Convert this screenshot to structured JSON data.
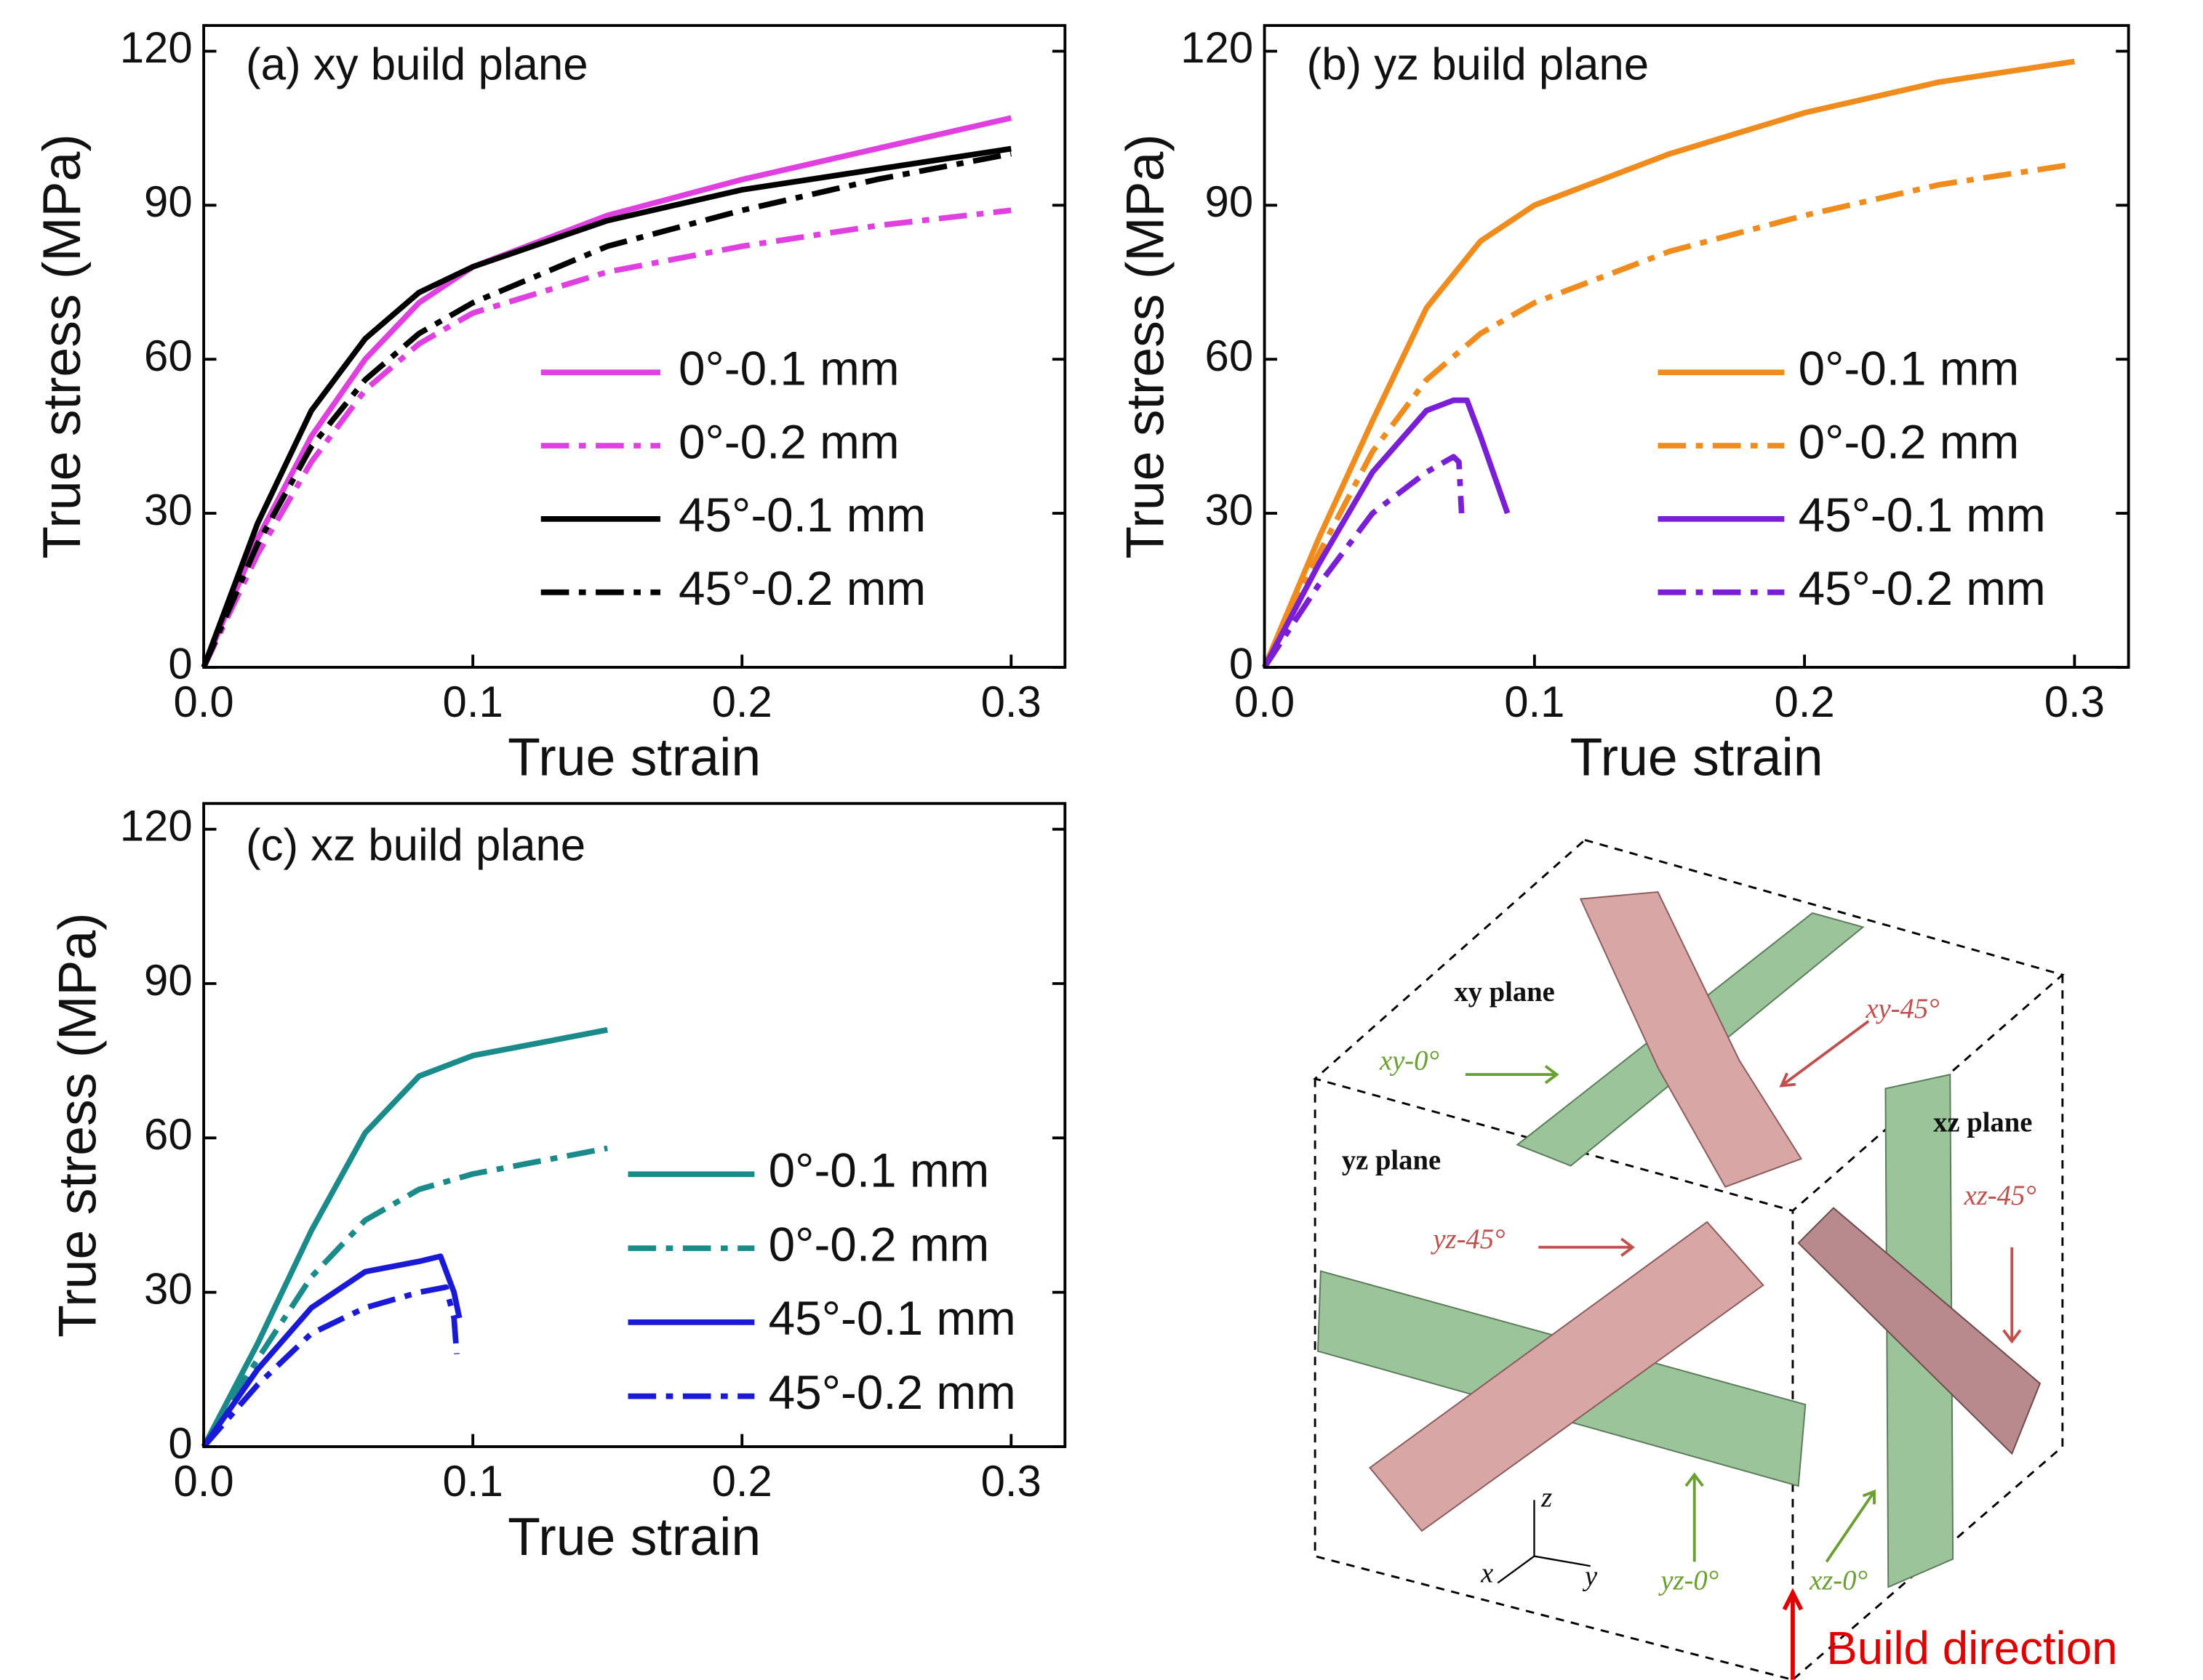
{
  "chart_data": [
    {
      "type": "line",
      "title": "(a) xy build plane",
      "xlabel": "True strain",
      "ylabel": "True stress (MPa)",
      "xlim": [
        0,
        0.32
      ],
      "ylim": [
        0,
        125
      ],
      "xticks": [
        {
          "value": 0,
          "label": "0.0"
        },
        0.1,
        0.2,
        0.3
      ],
      "yticks": [
        0,
        30,
        60,
        90,
        120
      ],
      "series": [
        {
          "name": "0°-0.1 mm",
          "color": "#e040e0",
          "linestyle": "solid",
          "x": [
            0,
            0.02,
            0.04,
            0.06,
            0.08,
            0.1,
            0.15,
            0.2,
            0.25,
            0.3
          ],
          "values": [
            0,
            25,
            45,
            60,
            71,
            78,
            88,
            95,
            101,
            107
          ]
        },
        {
          "name": "0°-0.2 mm",
          "color": "#e040e0",
          "linestyle": "dashdot",
          "x": [
            0,
            0.02,
            0.04,
            0.06,
            0.08,
            0.1,
            0.15,
            0.2,
            0.25,
            0.3
          ],
          "values": [
            0,
            22,
            40,
            54,
            63,
            69,
            77,
            82,
            86,
            89
          ]
        },
        {
          "name": "45°-0.1 mm",
          "color": "#000000",
          "linestyle": "solid",
          "x": [
            0,
            0.02,
            0.04,
            0.06,
            0.08,
            0.1,
            0.15,
            0.2,
            0.25,
            0.3
          ],
          "values": [
            0,
            28,
            50,
            64,
            73,
            78,
            87,
            93,
            97,
            101
          ]
        },
        {
          "name": "45°-0.2 mm",
          "color": "#000000",
          "linestyle": "dashdot",
          "x": [
            0,
            0.02,
            0.04,
            0.06,
            0.08,
            0.1,
            0.15,
            0.2,
            0.25,
            0.3
          ],
          "values": [
            0,
            24,
            43,
            56,
            65,
            71,
            82,
            89,
            95,
            100
          ]
        }
      ]
    },
    {
      "type": "line",
      "title": "(b) yz build plane",
      "xlabel": "True strain",
      "ylabel": "True stress (MPa)",
      "xlim": [
        0,
        0.32
      ],
      "ylim": [
        0,
        125
      ],
      "xticks": [
        {
          "value": 0,
          "label": "0.0"
        },
        0.1,
        0.2,
        0.3
      ],
      "yticks": [
        0,
        30,
        60,
        90,
        120
      ],
      "series": [
        {
          "name": "0°-0.1 mm",
          "color": "#f08c1e",
          "linestyle": "solid",
          "x": [
            0,
            0.02,
            0.04,
            0.06,
            0.08,
            0.1,
            0.15,
            0.2,
            0.25,
            0.3
          ],
          "values": [
            0,
            25,
            48,
            70,
            83,
            90,
            100,
            108,
            114,
            118
          ]
        },
        {
          "name": "0°-0.2 mm",
          "color": "#f08c1e",
          "linestyle": "dashdot",
          "x": [
            0,
            0.02,
            0.04,
            0.06,
            0.08,
            0.1,
            0.15,
            0.2,
            0.25,
            0.3
          ],
          "values": [
            0,
            22,
            42,
            56,
            65,
            71,
            81,
            88,
            94,
            98
          ]
        },
        {
          "name": "45°-0.1 mm",
          "color": "#7a1fd6",
          "linestyle": "solid",
          "x": [
            0,
            0.02,
            0.04,
            0.06,
            0.07,
            0.075,
            0.08,
            0.09
          ],
          "values": [
            0,
            20,
            38,
            50,
            52,
            52,
            45,
            30
          ]
        },
        {
          "name": "45°-0.2 mm",
          "color": "#7a1fd6",
          "linestyle": "dashdot",
          "x": [
            0,
            0.02,
            0.04,
            0.06,
            0.07,
            0.072,
            0.073
          ],
          "values": [
            0,
            16,
            30,
            38,
            41,
            40,
            30
          ]
        }
      ]
    },
    {
      "type": "line",
      "title": "(c) xz build plane",
      "xlabel": "True strain",
      "ylabel": "True stress (MPa)",
      "xlim": [
        0,
        0.32
      ],
      "ylim": [
        0,
        125
      ],
      "xticks": [
        {
          "value": 0,
          "label": "0.0"
        },
        0.1,
        0.2,
        0.3
      ],
      "yticks": [
        0,
        30,
        60,
        90,
        120
      ],
      "series": [
        {
          "name": "0°-0.1 mm",
          "color": "#1a8a8a",
          "linestyle": "solid",
          "x": [
            0,
            0.02,
            0.04,
            0.06,
            0.08,
            0.1,
            0.12,
            0.15
          ],
          "values": [
            0,
            20,
            42,
            61,
            72,
            76,
            78,
            81
          ]
        },
        {
          "name": "0°-0.2 mm",
          "color": "#1a8a8a",
          "linestyle": "dashdot",
          "x": [
            0,
            0.02,
            0.04,
            0.06,
            0.08,
            0.1,
            0.12,
            0.15
          ],
          "values": [
            0,
            17,
            33,
            44,
            50,
            53,
            55,
            58
          ]
        },
        {
          "name": "45°-0.1 mm",
          "color": "#1a1ad6",
          "linestyle": "solid",
          "x": [
            0,
            0.02,
            0.04,
            0.06,
            0.08,
            0.088,
            0.093,
            0.095
          ],
          "values": [
            0,
            15,
            27,
            34,
            36,
            37,
            30,
            25
          ]
        },
        {
          "name": "45°-0.2 mm",
          "color": "#1a1ad6",
          "linestyle": "dashdot",
          "x": [
            0,
            0.02,
            0.04,
            0.06,
            0.08,
            0.09,
            0.093,
            0.094
          ],
          "values": [
            0,
            12,
            22,
            27,
            30,
            31,
            25,
            18
          ]
        }
      ]
    }
  ],
  "diagram": {
    "xy_plane": "xy plane",
    "yz_plane": "yz plane",
    "xz_plane": "xz plane",
    "xy_0": "xy-0°",
    "xy_45": "xy-45°",
    "yz_45": "yz-45°",
    "yz_0": "yz-0°",
    "xz_45": "xz-45°",
    "xz_0": "xz-0°",
    "axis_x": "x",
    "axis_y": "y",
    "axis_z": "z",
    "build_direction": "Build direction"
  }
}
